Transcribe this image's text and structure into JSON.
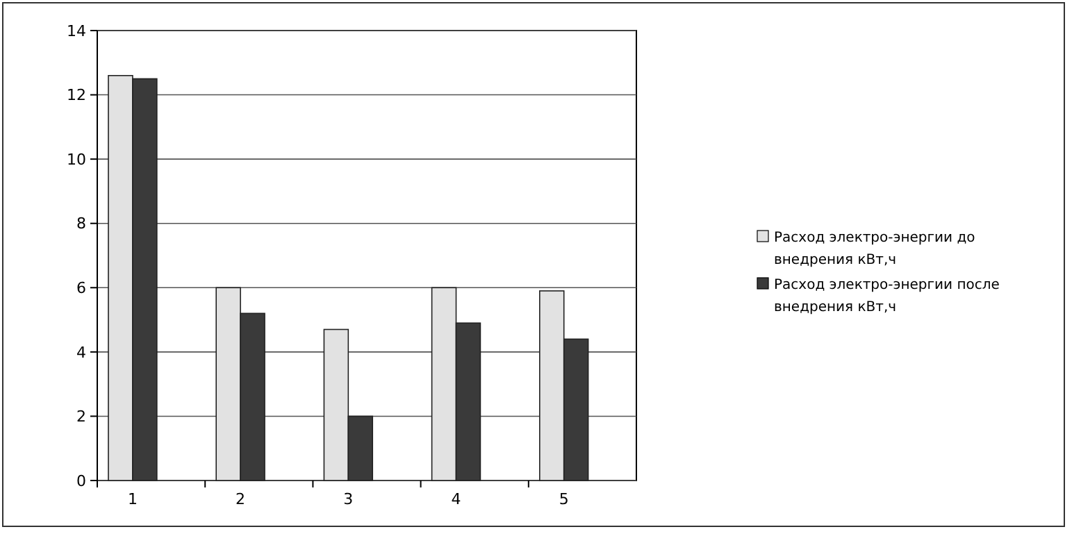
{
  "chart_data": {
    "type": "bar",
    "categories": [
      "1",
      "2",
      "3",
      "4",
      "5"
    ],
    "series": [
      {
        "name": "Расход электро-энергии до внедрения кВт,ч",
        "color": "#e2e2e2",
        "values": [
          12.6,
          6.0,
          4.7,
          6.0,
          5.9
        ]
      },
      {
        "name": "Расход электро-энергии после внедрения кВт,ч",
        "color": "#3a3a3a",
        "values": [
          12.5,
          5.2,
          2.0,
          4.9,
          4.4
        ]
      }
    ],
    "ylim": [
      0,
      14
    ],
    "yticks": [
      0,
      2,
      4,
      6,
      8,
      10,
      12,
      14
    ],
    "grid": "y",
    "legend": "right"
  }
}
